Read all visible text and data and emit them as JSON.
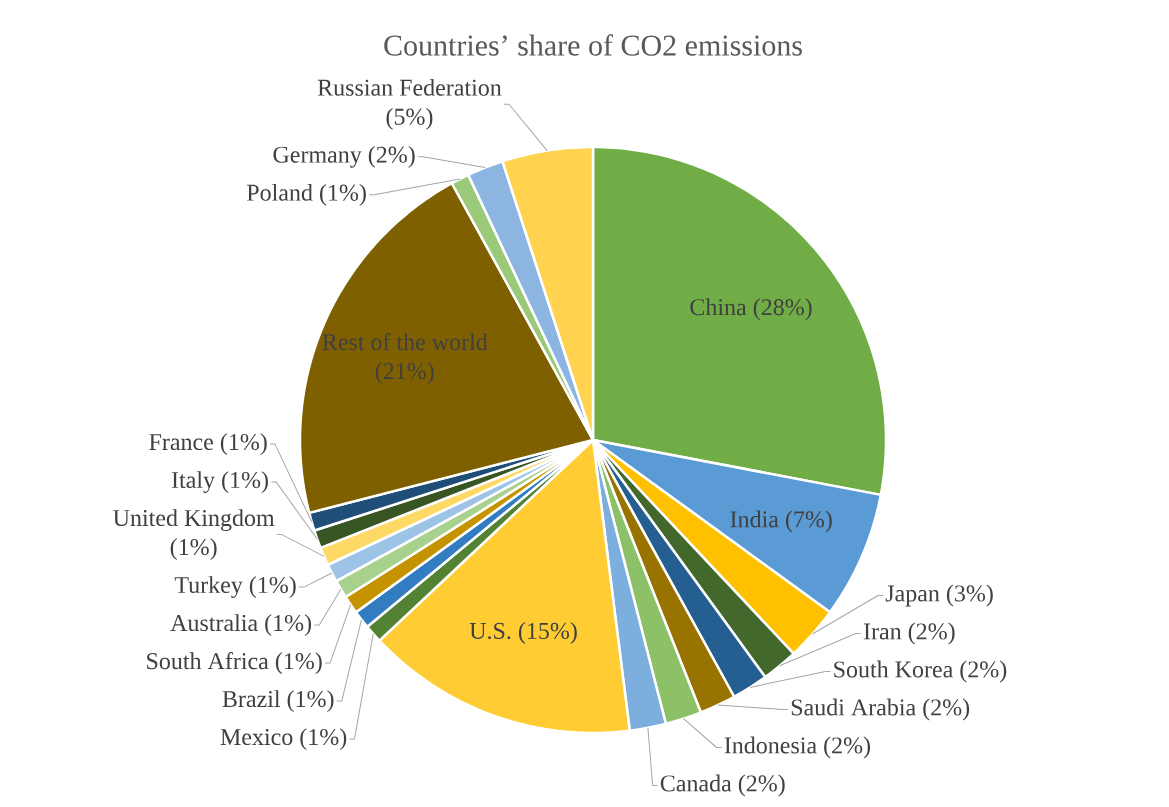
{
  "chart_data": {
    "type": "pie",
    "title": "Countries’ share of CO2 emissions",
    "categories": [
      "China",
      "India",
      "Japan",
      "Iran",
      "South Korea",
      "Saudi Arabia",
      "Indonesia",
      "Canada",
      "U.S.",
      "Mexico",
      "Brazil",
      "South Africa",
      "Australia",
      "Turkey",
      "United Kingdom",
      "Italy",
      "France",
      "Rest of the world",
      "Poland",
      "Germany",
      "Russian Federation"
    ],
    "values": [
      28,
      7,
      3,
      2,
      2,
      2,
      2,
      2,
      15,
      1,
      1,
      1,
      1,
      1,
      1,
      1,
      1,
      21,
      1,
      2,
      5
    ],
    "value_labels": [
      "(28%)",
      "(7%)",
      "(3%)",
      "(2%)",
      "(2%)",
      "(2%)",
      "(2%)",
      "(2%)",
      "(15%)",
      "(1%)",
      "(1%)",
      "(1%)",
      "(1%)",
      "(1%)",
      "(1%)",
      "(1%)",
      "(1%)",
      "(21%)",
      "(1%)",
      "(2%)",
      "(5%)"
    ],
    "colors": [
      "#70AD47",
      "#5B9BD5",
      "#FFC000",
      "#43682B",
      "#255E91",
      "#997300",
      "#8CC168",
      "#7CAFDD",
      "#FFCD33",
      "#548235",
      "#327DC2",
      "#C69300",
      "#A9D18E",
      "#9DC3E6",
      "#FFD966",
      "#375623",
      "#1F4E79",
      "#7F6000",
      "#9BC97A",
      "#8DB5E2",
      "#FFD24F"
    ]
  }
}
